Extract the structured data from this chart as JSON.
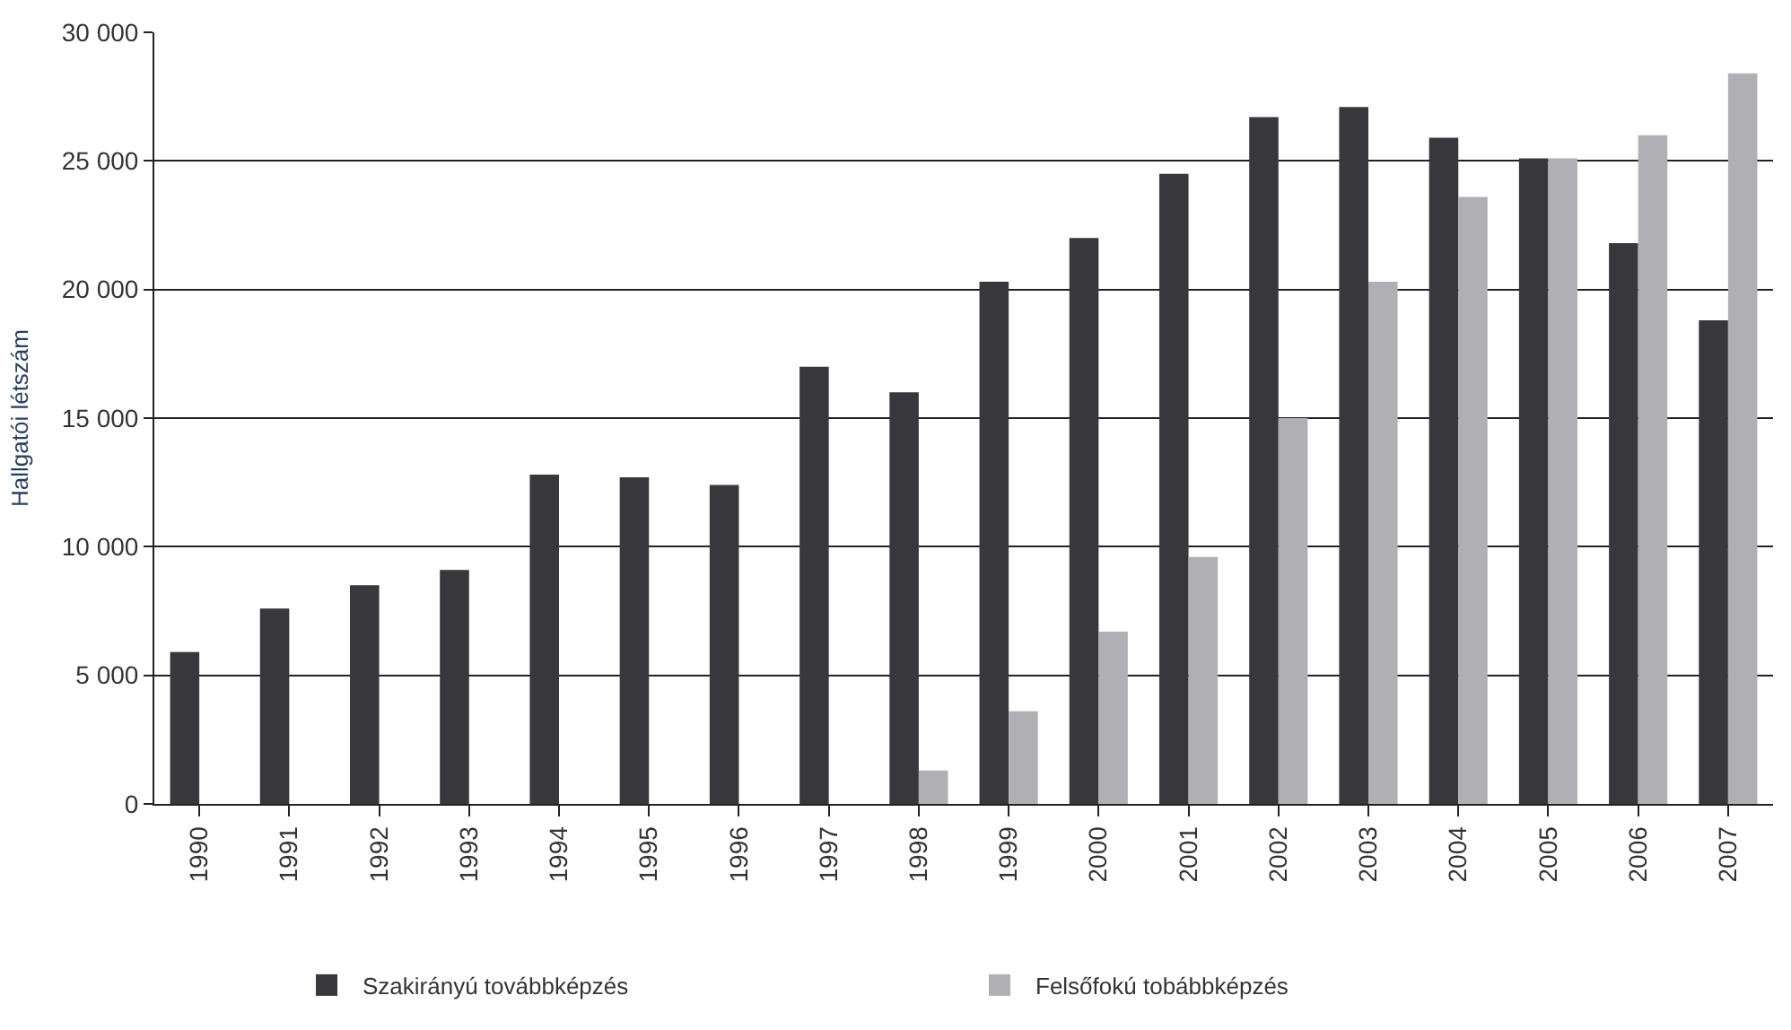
{
  "chart_data": {
    "type": "bar",
    "ylabel": "Hallgatói létszám",
    "categories": [
      "1990",
      "1991",
      "1992",
      "1993",
      "1994",
      "1995",
      "1996",
      "1997",
      "1998",
      "1999",
      "2000",
      "2001",
      "2002",
      "2003",
      "2004",
      "2005",
      "2006",
      "2007"
    ],
    "series": [
      {
        "name": "Szakirányú továbbképzés",
        "color": "#38373b",
        "values": [
          5900,
          7600,
          8500,
          9100,
          12800,
          12700,
          12400,
          17000,
          16000,
          20300,
          22000,
          24500,
          26700,
          27100,
          25900,
          25100,
          21800,
          18800
        ]
      },
      {
        "name": "Felsőfokú tobábbképzés",
        "color": "#b0afb3",
        "values": [
          null,
          null,
          null,
          null,
          null,
          null,
          null,
          null,
          1300,
          3600,
          6700,
          9600,
          15000,
          20300,
          23600,
          25100,
          26000,
          28400
        ]
      }
    ],
    "ylim": [
      0,
      30000
    ],
    "yticks": [
      {
        "value": 0,
        "label": "0"
      },
      {
        "value": 5000,
        "label": "5 000"
      },
      {
        "value": 10000,
        "label": "10 000"
      },
      {
        "value": 15000,
        "label": "15 000"
      },
      {
        "value": 20000,
        "label": "20 000"
      },
      {
        "value": 25000,
        "label": "25 000"
      },
      {
        "value": 30000,
        "label": "30 000"
      }
    ],
    "grid": "y",
    "legend": "bottom"
  }
}
